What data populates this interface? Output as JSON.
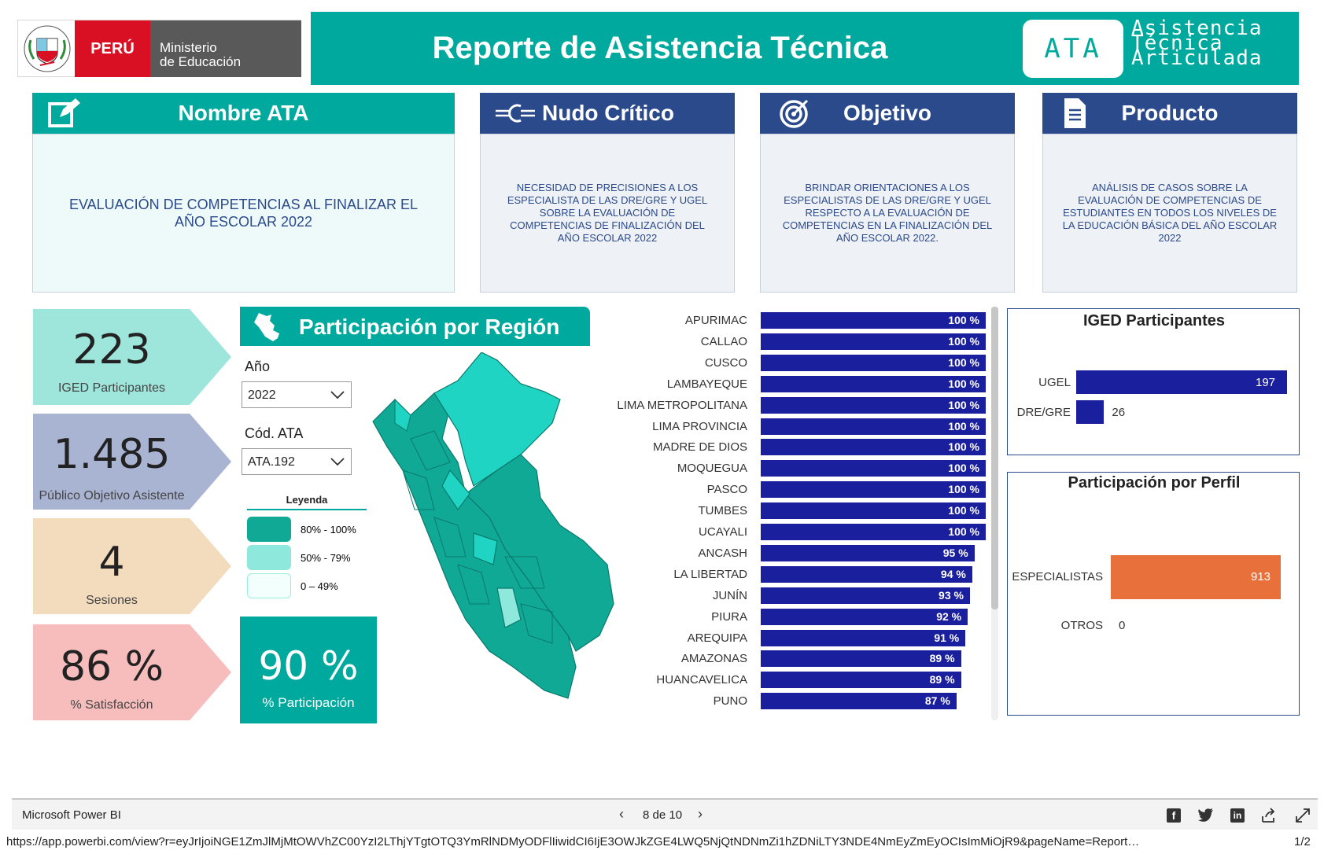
{
  "header": {
    "peru": "PERÚ",
    "ministry_line1": "Ministerio",
    "ministry_line2": "de Educación",
    "title": "Reporte de Asistencia Técnica",
    "badge": "ATA",
    "badge_words": [
      "Asistencia",
      "Técnica",
      "Articulada"
    ],
    "crest_text": "REPÚBLICA DEL PERÚ"
  },
  "cards": {
    "nombre": {
      "title": "Nombre ATA",
      "icon": "edit-icon",
      "text": "EVALUACIÓN DE COMPETENCIAS AL FINALIZAR EL AÑO ESCOLAR 2022"
    },
    "nudo": {
      "title": "Nudo Crítico",
      "icon": "knot-icon",
      "text": "NECESIDAD DE PRECISIONES A LOS ESPECIALISTA DE LAS DRE/GRE Y UGEL SOBRE LA EVALUACIÓN DE COMPETENCIAS DE FINALIZACIÓN DEL AÑO ESCOLAR 2022"
    },
    "objetivo": {
      "title": "Objetivo",
      "icon": "target-icon",
      "text": "BRINDAR ORIENTACIONES A LOS ESPECIALISTAS DE LAS DRE/GRE Y UGEL RESPECTO A LA EVALUACIÓN DE COMPETENCIAS EN LA FINALIZACIÓN DEL AÑO ESCOLAR 2022."
    },
    "producto": {
      "title": "Producto",
      "icon": "document-icon",
      "text": "ANÁLISIS DE CASOS SOBRE LA EVALUACIÓN DE COMPETENCIAS DE ESTUDIANTES EN TODOS LOS NIVELES DE LA EDUCACIÓN BÁSICA DEL AÑO ESCOLAR 2022"
    }
  },
  "kpis": {
    "iged": {
      "value": "223",
      "label": "IGED Participantes"
    },
    "publico": {
      "value": "1.485",
      "label": "Público Objetivo Asistente"
    },
    "sesiones": {
      "value": "4",
      "label": "Sesiones"
    },
    "satisfaccion": {
      "value": "86 %",
      "label": "% Satisfacción"
    },
    "participacion": {
      "value": "90 %",
      "label": "% Participación"
    }
  },
  "colors": {
    "teal": "#00a99d",
    "navy": "#2b4a8b",
    "bar_blue": "#1a1f9e",
    "orange": "#e8703a",
    "kpi_teal": "#9ee5dc",
    "kpi_lavender": "#a9b3d2",
    "kpi_peach": "#f3dbbe",
    "kpi_pink": "#f7bcbc",
    "map_dark": "#10a996",
    "map_light": "#1fd4c2"
  },
  "region_section": {
    "title": "Participación por Región",
    "icon": "peru-map-icon",
    "year_label": "Año",
    "year_value": "2022",
    "ata_label": "Cód. ATA",
    "ata_value": "ATA.192",
    "legend_title": "Leyenda",
    "legend": [
      "80% - 100%",
      "50% - 79%",
      "0 – 49%"
    ]
  },
  "chart_data": [
    {
      "type": "bar",
      "categories": [
        "APURIMAC",
        "CALLAO",
        "CUSCO",
        "LAMBAYEQUE",
        "LIMA METROPOLITANA",
        "LIMA PROVINCIA",
        "MADRE DE DIOS",
        "MOQUEGUA",
        "PASCO",
        "TUMBES",
        "UCAYALI",
        "ANCASH",
        "LA LIBERTAD",
        "JUNÍN",
        "PIURA",
        "AREQUIPA",
        "AMAZONAS",
        "HUANCAVELICA",
        "PUNO"
      ],
      "values": [
        100,
        100,
        100,
        100,
        100,
        100,
        100,
        100,
        100,
        100,
        100,
        95,
        94,
        93,
        92,
        91,
        89,
        89,
        87
      ],
      "labels": [
        "100 %",
        "100 %",
        "100 %",
        "100 %",
        "100 %",
        "100 %",
        "100 %",
        "100 %",
        "100 %",
        "100 %",
        "100 %",
        "95 %",
        "94 %",
        "93 %",
        "92 %",
        "91 %",
        "89 %",
        "89 %",
        "87 %"
      ],
      "xlim": [
        0,
        100
      ]
    },
    {
      "type": "bar",
      "title": "IGED Participantes",
      "categories": [
        "UGEL",
        "DRE/GRE"
      ],
      "values": [
        197,
        26
      ],
      "xlim": [
        0,
        197
      ]
    },
    {
      "type": "bar",
      "title": "Participación por Perfil",
      "categories": [
        "ESPECIALISTAS",
        "OTROS"
      ],
      "values": [
        913,
        0
      ],
      "xlim": [
        0,
        913
      ]
    }
  ],
  "footer": {
    "brand": "Microsoft Power BI",
    "pager": "8 de 10",
    "url": "https://app.powerbi.com/view?r=eyJrIjoiNGE1ZmJlMjMtOWVhZC00YzI2LThjYTgtOTQ3YmRlNDMyODFlIiwidCI6IjE3OWJkZGE4LWQ5NjQtNDNmZi1hZDNiLTY3NDE4NmEyZmEyOCIsImMiOjR9&pageName=Report…",
    "page_count": "1/2"
  }
}
